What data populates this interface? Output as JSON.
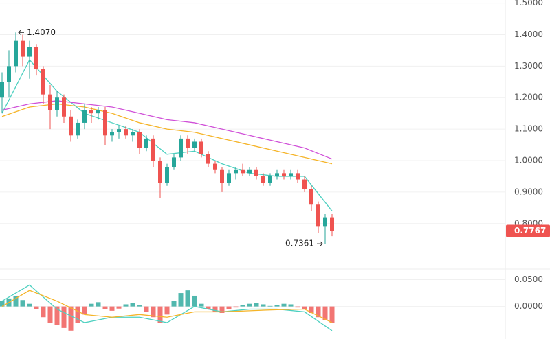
{
  "chart_data": {
    "type": "candlestick",
    "up_color": "#26a69a",
    "down_color": "#ef5350",
    "ylim": [
      0.66,
      1.51
    ],
    "yticks": [
      {
        "value": 0.8,
        "label": "0.8000"
      },
      {
        "value": 0.9,
        "label": "0.9000"
      },
      {
        "value": 1.0,
        "label": "1.0000"
      },
      {
        "value": 1.1,
        "label": "1.1000"
      },
      {
        "value": 1.2,
        "label": "1.2000"
      },
      {
        "value": 1.3,
        "label": "1.3000"
      },
      {
        "value": 1.4,
        "label": "1.4000"
      },
      {
        "value": 1.5,
        "label": "1.5000"
      }
    ],
    "candles": [
      {
        "open": 1.2,
        "high": 1.28,
        "low": 1.15,
        "close": 1.25
      },
      {
        "open": 1.25,
        "high": 1.35,
        "low": 1.2,
        "close": 1.3
      },
      {
        "open": 1.3,
        "high": 1.407,
        "low": 1.28,
        "close": 1.38
      },
      {
        "open": 1.38,
        "high": 1.4,
        "low": 1.3,
        "close": 1.33
      },
      {
        "open": 1.33,
        "high": 1.38,
        "low": 1.26,
        "close": 1.36
      },
      {
        "open": 1.36,
        "high": 1.37,
        "low": 1.27,
        "close": 1.29
      },
      {
        "open": 1.29,
        "high": 1.3,
        "low": 1.18,
        "close": 1.21
      },
      {
        "open": 1.21,
        "high": 1.24,
        "low": 1.1,
        "close": 1.16
      },
      {
        "open": 1.16,
        "high": 1.22,
        "low": 1.14,
        "close": 1.2
      },
      {
        "open": 1.2,
        "high": 1.21,
        "low": 1.12,
        "close": 1.14
      },
      {
        "open": 1.14,
        "high": 1.16,
        "low": 1.06,
        "close": 1.08
      },
      {
        "open": 1.08,
        "high": 1.13,
        "low": 1.07,
        "close": 1.12
      },
      {
        "open": 1.12,
        "high": 1.18,
        "low": 1.1,
        "close": 1.16
      },
      {
        "open": 1.16,
        "high": 1.17,
        "low": 1.12,
        "close": 1.15
      },
      {
        "open": 1.15,
        "high": 1.17,
        "low": 1.13,
        "close": 1.16
      },
      {
        "open": 1.16,
        "high": 1.17,
        "low": 1.05,
        "close": 1.08
      },
      {
        "open": 1.08,
        "high": 1.1,
        "low": 1.06,
        "close": 1.09
      },
      {
        "open": 1.09,
        "high": 1.11,
        "low": 1.07,
        "close": 1.1
      },
      {
        "open": 1.1,
        "high": 1.11,
        "low": 1.07,
        "close": 1.08
      },
      {
        "open": 1.08,
        "high": 1.1,
        "low": 1.06,
        "close": 1.09
      },
      {
        "open": 1.09,
        "high": 1.1,
        "low": 1.02,
        "close": 1.04
      },
      {
        "open": 1.04,
        "high": 1.08,
        "low": 1.03,
        "close": 1.07
      },
      {
        "open": 1.07,
        "high": 1.08,
        "low": 0.98,
        "close": 1.0
      },
      {
        "open": 1.0,
        "high": 1.01,
        "low": 0.88,
        "close": 0.93
      },
      {
        "open": 0.93,
        "high": 0.99,
        "low": 0.92,
        "close": 0.98
      },
      {
        "open": 0.98,
        "high": 1.02,
        "low": 0.97,
        "close": 1.01
      },
      {
        "open": 1.01,
        "high": 1.08,
        "low": 1.0,
        "close": 1.07
      },
      {
        "open": 1.07,
        "high": 1.08,
        "low": 1.02,
        "close": 1.04
      },
      {
        "open": 1.04,
        "high": 1.07,
        "low": 1.03,
        "close": 1.06
      },
      {
        "open": 1.06,
        "high": 1.07,
        "low": 1.01,
        "close": 1.02
      },
      {
        "open": 1.02,
        "high": 1.03,
        "low": 0.98,
        "close": 0.99
      },
      {
        "open": 0.99,
        "high": 1.0,
        "low": 0.96,
        "close": 0.97
      },
      {
        "open": 0.97,
        "high": 0.98,
        "low": 0.9,
        "close": 0.93
      },
      {
        "open": 0.93,
        "high": 0.97,
        "low": 0.92,
        "close": 0.96
      },
      {
        "open": 0.96,
        "high": 0.98,
        "low": 0.94,
        "close": 0.97
      },
      {
        "open": 0.97,
        "high": 0.99,
        "low": 0.95,
        "close": 0.96
      },
      {
        "open": 0.96,
        "high": 0.98,
        "low": 0.95,
        "close": 0.97
      },
      {
        "open": 0.97,
        "high": 0.98,
        "low": 0.94,
        "close": 0.95
      },
      {
        "open": 0.95,
        "high": 0.96,
        "low": 0.92,
        "close": 0.93
      },
      {
        "open": 0.93,
        "high": 0.96,
        "low": 0.92,
        "close": 0.95
      },
      {
        "open": 0.95,
        "high": 0.97,
        "low": 0.94,
        "close": 0.96
      },
      {
        "open": 0.96,
        "high": 0.97,
        "low": 0.94,
        "close": 0.95
      },
      {
        "open": 0.95,
        "high": 0.97,
        "low": 0.94,
        "close": 0.96
      },
      {
        "open": 0.96,
        "high": 0.97,
        "low": 0.93,
        "close": 0.94
      },
      {
        "open": 0.94,
        "high": 0.95,
        "low": 0.9,
        "close": 0.91
      },
      {
        "open": 0.91,
        "high": 0.92,
        "low": 0.84,
        "close": 0.86
      },
      {
        "open": 0.86,
        "high": 0.87,
        "low": 0.77,
        "close": 0.79
      },
      {
        "open": 0.79,
        "high": 0.83,
        "low": 0.7361,
        "close": 0.82
      },
      {
        "open": 0.82,
        "high": 0.83,
        "low": 0.76,
        "close": 0.7767
      }
    ],
    "ma_x": [
      0,
      4,
      8,
      12,
      16,
      20,
      24,
      28,
      32,
      36,
      40,
      44,
      48
    ],
    "moving_averages": [
      {
        "color": "#4dd0c0",
        "values": [
          1.15,
          1.32,
          1.22,
          1.15,
          1.12,
          1.09,
          1.02,
          1.03,
          0.99,
          0.96,
          0.95,
          0.95,
          0.84
        ]
      },
      {
        "color": "#f5b428",
        "values": [
          1.14,
          1.17,
          1.18,
          1.17,
          1.15,
          1.12,
          1.1,
          1.09,
          1.07,
          1.05,
          1.03,
          1.01,
          0.99
        ]
      },
      {
        "color": "#d050d8",
        "values": [
          1.16,
          1.18,
          1.19,
          1.18,
          1.17,
          1.15,
          1.13,
          1.12,
          1.1,
          1.08,
          1.06,
          1.04,
          1.005
        ]
      }
    ],
    "high_marker": {
      "value": 1.407,
      "label": "1.4070"
    },
    "low_marker": 0.7361,
    "last_price": 0.7767,
    "macd": {
      "ylim": [
        -0.0555,
        0.066
      ],
      "yticks": [
        {
          "value": 0.0,
          "label": "0.0000"
        },
        {
          "value": 0.05,
          "label": "0.0500"
        }
      ],
      "histogram": [
        0.01,
        0.015,
        0.02,
        0.012,
        0.005,
        -0.005,
        -0.02,
        -0.03,
        -0.035,
        -0.04,
        -0.045,
        -0.03,
        -0.015,
        0.005,
        0.008,
        -0.005,
        -0.008,
        -0.004,
        0.004,
        0.006,
        0.002,
        -0.01,
        -0.02,
        -0.03,
        -0.015,
        0.01,
        0.025,
        0.03,
        0.02,
        0.005,
        -0.005,
        -0.01,
        -0.012,
        -0.005,
        -0.002,
        0.003,
        0.005,
        0.006,
        0.004,
        0.001,
        0.003,
        0.005,
        0.004,
        -0.002,
        -0.005,
        -0.012,
        -0.02,
        -0.025,
        -0.03
      ],
      "lines": [
        {
          "color": "#4dd0c0",
          "values": [
            0.01,
            0.04,
            -0.005,
            -0.03,
            -0.02,
            -0.02,
            -0.03,
            0.0,
            -0.01,
            -0.005,
            -0.005,
            -0.01,
            -0.045
          ]
        },
        {
          "color": "#f5b428",
          "values": [
            0.0,
            0.03,
            0.01,
            -0.015,
            -0.02,
            -0.015,
            -0.02,
            -0.01,
            -0.01,
            -0.008,
            -0.006,
            -0.005,
            -0.03
          ]
        }
      ]
    }
  }
}
